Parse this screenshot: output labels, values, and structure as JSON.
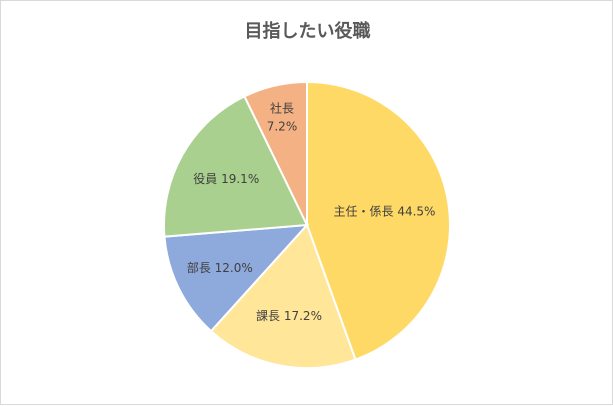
{
  "chart_data": {
    "type": "pie",
    "title": "目指したい役職",
    "start_angle_deg": 0,
    "direction": "clockwise",
    "slices": [
      {
        "label": "主任・係長",
        "percent_label": "44.5%",
        "value": 44.5,
        "color": "#FFD966"
      },
      {
        "label": "課長",
        "percent_label": "17.2%",
        "value": 17.2,
        "color": "#FFE699"
      },
      {
        "label": "部長",
        "percent_label": "12.0%",
        "value": 12.0,
        "color": "#8EA9DB"
      },
      {
        "label": "役員",
        "percent_label": "19.1%",
        "value": 19.1,
        "color": "#A9D08E"
      },
      {
        "label": "社長",
        "percent_label": "7.2%",
        "value": 7.2,
        "color": "#F4B183"
      }
    ]
  }
}
